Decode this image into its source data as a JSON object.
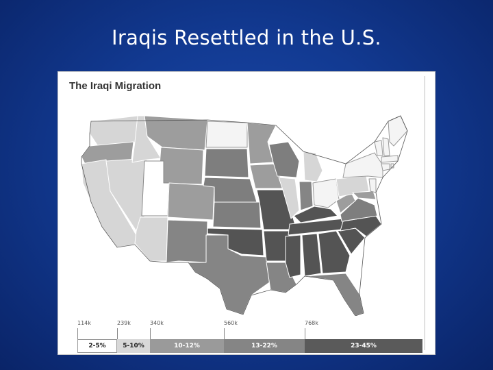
{
  "slide": {
    "title": "Iraqis Resettled in the U.S."
  },
  "map": {
    "title": "The Iraqi Migration",
    "legend": {
      "tick_labels": [
        "114k",
        "239k",
        "340k",
        "560k",
        "768k"
      ],
      "categories": [
        {
          "label": "2-5%",
          "color": "#ffffff",
          "text_color": "#222222"
        },
        {
          "label": "5-10%",
          "color": "#d8d8d8",
          "text_color": "#222222"
        },
        {
          "label": "10-12%",
          "color": "#9a9a9a",
          "text_color": "#ffffff"
        },
        {
          "label": "13-22%",
          "color": "#858585",
          "text_color": "#ffffff"
        },
        {
          "label": "23-45%",
          "color": "#5a5a5a",
          "text_color": "#ffffff"
        }
      ]
    }
  },
  "colors": {
    "background": "#1a47a8",
    "cat_2_5": "#f6f6f6",
    "cat_5_10": "#d5d5d5",
    "cat_10_12": "#9d9d9d",
    "cat_13_22": "#7e7e7e",
    "cat_23_45": "#545454"
  }
}
